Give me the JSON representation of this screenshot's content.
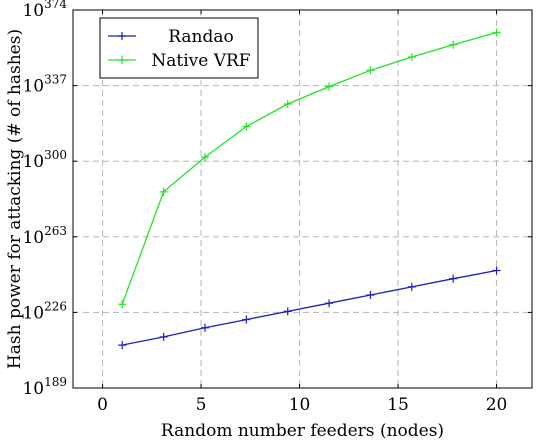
{
  "chart_data": {
    "type": "line",
    "xlabel": "Random number feeders (nodes)",
    "ylabel": "Hash power for attacking (# of hashes)",
    "xlim": [
      -1.5,
      21.8
    ],
    "ylim": [
      189,
      374
    ],
    "y_scale": "log10",
    "xticks": [
      0,
      5,
      10,
      15,
      20
    ],
    "yticks": [
      189,
      226,
      263,
      300,
      337,
      374
    ],
    "y_tick_base": "10",
    "grid": true,
    "legend_position": "top-left",
    "x": [
      1,
      3.1,
      5.2,
      7.3,
      9.4,
      11.5,
      13.6,
      15.7,
      17.8,
      20
    ],
    "series": [
      {
        "name": "Randao",
        "color": "#1c1cc8",
        "values": [
          210,
          214,
          218.5,
          222.5,
          226.5,
          230.5,
          234.5,
          238.5,
          242.5,
          246.5
        ]
      },
      {
        "name": "Native VRF",
        "color": "#22e522",
        "values": [
          230,
          285,
          302,
          317,
          328,
          336.5,
          344.5,
          351,
          357,
          363
        ]
      }
    ]
  }
}
